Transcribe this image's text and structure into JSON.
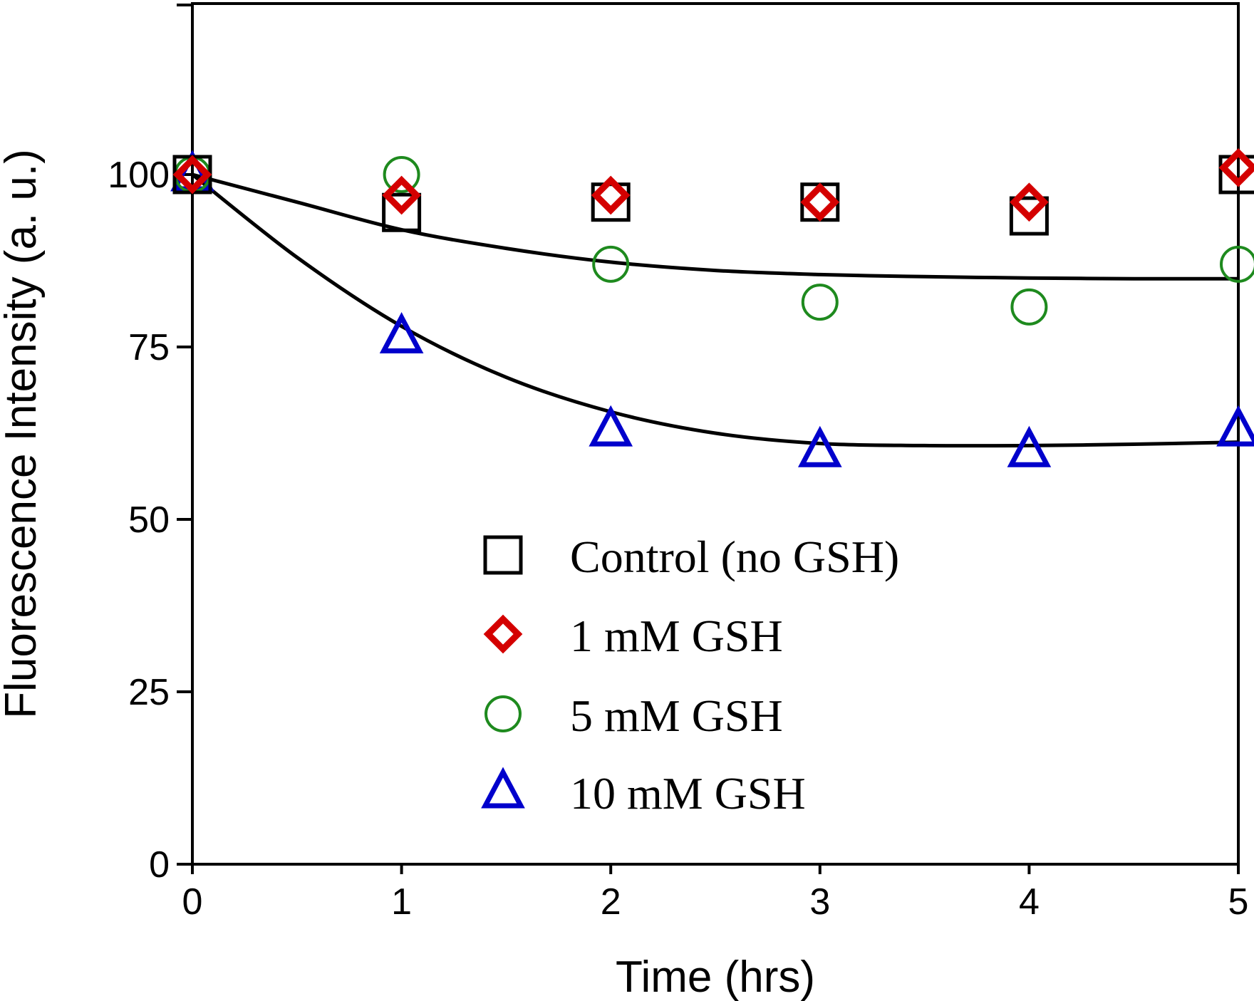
{
  "chart_data": {
    "type": "scatter",
    "xlabel": "Time (hrs)",
    "ylabel": "Fluorescence Intensity (a. u.)",
    "xlim": [
      0,
      5
    ],
    "ylim": [
      0,
      100
    ],
    "x_ticks": [
      "0",
      "1",
      "2",
      "3",
      "4",
      "5"
    ],
    "y_ticks": [
      "0",
      "25",
      "50",
      "75",
      "100"
    ],
    "grid": false,
    "legend_position": "lower-center",
    "x": [
      0,
      1,
      2,
      3,
      4,
      5
    ],
    "series": [
      {
        "name": "Control (no GSH)",
        "marker": "square",
        "color": "#000000",
        "values": [
          100,
          94.5,
          96,
          96,
          94,
          100
        ]
      },
      {
        "name": "1 mM GSH",
        "marker": "diamond",
        "color": "#d40000",
        "values": [
          100,
          97,
          97,
          96,
          96,
          101
        ]
      },
      {
        "name": "5 mM GSH",
        "marker": "circle",
        "color": "#1e8a1e",
        "values": [
          100,
          100,
          87,
          81.5,
          80.8,
          87
        ]
      },
      {
        "name": "10 mM GSH",
        "marker": "triangle",
        "color": "#0000cc",
        "values": [
          100,
          76.5,
          63,
          60,
          60,
          63
        ]
      }
    ],
    "fit_lines": [
      {
        "color": "#000000",
        "x": [
          0,
          0.5,
          1,
          1.5,
          2,
          2.5,
          3,
          3.5,
          4,
          4.5,
          5
        ],
        "y": [
          100,
          96,
          92,
          89.3,
          87.3,
          86.1,
          85.5,
          85.2,
          85,
          84.9,
          84.9
        ]
      },
      {
        "color": "#000000",
        "x": [
          0,
          0.5,
          1,
          1.5,
          2,
          2.5,
          3,
          3.5,
          4,
          4.5,
          5
        ],
        "y": [
          100,
          88,
          78,
          70.6,
          65.6,
          62.5,
          61,
          60.7,
          60.7,
          60.9,
          61.2
        ]
      }
    ]
  }
}
